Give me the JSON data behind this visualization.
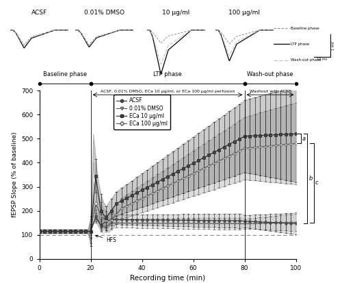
{
  "upper_labels": [
    "ACSF",
    "0.01% DMSO",
    "10 μg/ml",
    "100 μg/ml"
  ],
  "ylabel": "fEPSP Slope (% of baseline)",
  "xlabel": "Recording time (min)",
  "xlim": [
    0,
    100
  ],
  "ylim": [
    0,
    700
  ],
  "yticks": [
    0,
    100,
    200,
    300,
    400,
    500,
    600,
    700
  ],
  "xticks": [
    0,
    20,
    40,
    60,
    80,
    100
  ],
  "annotation_text_ltp": "ACSF, 0.01% DMSO, ECa 10 μg/ml, or ECa 100 μg/ml perfusion",
  "annotation_text_washout": "Washout with ACSF",
  "phase_label_baseline": "Baseline phase",
  "phase_label_ltp": "LTP phase",
  "phase_label_washout": "Wash-out phase",
  "bg_color": "#ffffff"
}
